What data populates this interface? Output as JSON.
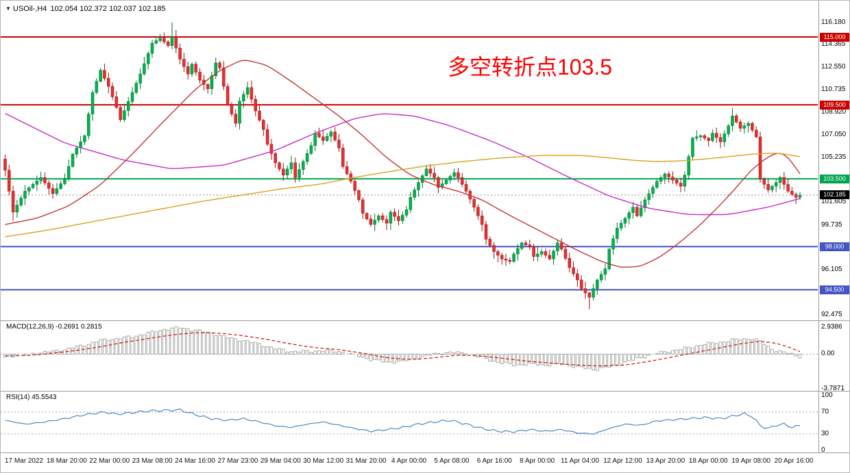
{
  "header": {
    "symbol_period": "USOil-,H4",
    "ohlc_values": "102.054 102.372 102.037 102.185"
  },
  "annotation": {
    "text": "多空转折点103.5",
    "color": "#ff0000"
  },
  "colors": {
    "up_candle": "#00b44c",
    "up_border": "#00712f",
    "down_candle": "#e53030",
    "down_border": "#9c0f0f",
    "resistance_line": "#cc0000",
    "pivot_line": "#00a651",
    "support_line": "#4455c4",
    "current_price_line": "#888888",
    "ma_magenta": "#c32cc3",
    "ma_red": "#c43434",
    "ma_orange": "#d9a21e",
    "macd_bar": "#a8a8a8",
    "macd_signal": "#cc1111",
    "rsi_line": "#3a7fb8",
    "separator": "#9a9a9a",
    "axis_text": "#000000"
  },
  "chart_data": {
    "type": "candlestick",
    "title": "USOil-,H4",
    "timeframe": "H4",
    "ohlc_display": {
      "open": "102.054",
      "high": "102.372",
      "low": "102.037",
      "close": "102.185"
    },
    "price_range": {
      "min": 92.3,
      "max": 117.5
    },
    "current_price": 102.185,
    "hlines": [
      {
        "price": 115.0,
        "type": "resistance"
      },
      {
        "price": 109.5,
        "type": "resistance"
      },
      {
        "price": 103.5,
        "type": "pivot"
      },
      {
        "price": 98.0,
        "type": "support"
      },
      {
        "price": 94.5,
        "type": "support"
      }
    ],
    "price_axis": {
      "labels": [
        {
          "price": 116.18,
          "label": "116.180"
        },
        {
          "price": 114.365,
          "label": "114.365"
        },
        {
          "price": 112.55,
          "label": "112.550"
        },
        {
          "price": 110.735,
          "label": "110.735"
        },
        {
          "price": 108.92,
          "label": "108.920"
        },
        {
          "price": 107.05,
          "label": "107.050"
        },
        {
          "price": 105.235,
          "label": "105.235"
        },
        {
          "price": 101.605,
          "label": "101.605"
        },
        {
          "price": 99.735,
          "label": "99.735"
        },
        {
          "price": 96.105,
          "label": "96.105"
        },
        {
          "price": 92.475,
          "label": "92.475"
        }
      ],
      "badges": [
        {
          "price": 115.0,
          "label": "115.000",
          "type": "resistance"
        },
        {
          "price": 109.5,
          "label": "109.500",
          "type": "resistance"
        },
        {
          "price": 103.5,
          "label": "103.500",
          "type": "pivot"
        },
        {
          "price": 102.185,
          "label": "102.185",
          "type": "current"
        },
        {
          "price": 98.0,
          "label": "98.000",
          "type": "support"
        },
        {
          "price": 94.5,
          "label": "94.500",
          "type": "support"
        }
      ]
    },
    "closes": [
      104.2,
      102.5,
      100.8,
      101.37,
      101.93,
      102.5,
      102.78,
      103.05,
      103.33,
      103.6,
      103.17,
      102.73,
      102.3,
      102.7,
      103.1,
      103.5,
      104.5,
      105.5,
      106.0,
      106.5,
      107.0,
      108.75,
      110.5,
      111.4,
      112.3,
      111.65,
      111.0,
      110.15,
      109.3,
      108.3,
      109.03,
      109.77,
      110.5,
      111.25,
      112.0,
      112.83,
      113.67,
      114.5,
      114.7,
      114.9,
      114.6,
      114.3,
      115.0,
      114.1,
      113.2,
      112.6,
      112.0,
      112.8,
      112.15,
      111.5,
      111.15,
      110.8,
      111.85,
      112.9,
      112.5,
      111.0,
      109.5,
      108.75,
      108.0,
      109.8,
      110.35,
      110.9,
      109.95,
      109.0,
      108.25,
      107.5,
      106.3,
      105.55,
      104.8,
      104.3,
      103.8,
      104.3,
      104.8,
      103.6,
      104.25,
      104.9,
      105.55,
      106.2,
      107.2,
      106.9,
      106.6,
      106.95,
      107.3,
      106.65,
      106.0,
      104.5,
      103.9,
      103.3,
      102.55,
      101.8,
      100.7,
      100.25,
      99.8,
      100.15,
      100.5,
      100.2,
      99.9,
      100.8,
      100.45,
      100.1,
      100.55,
      101.0,
      102.0,
      102.6,
      103.2,
      103.75,
      104.3,
      103.95,
      103.6,
      102.8,
      103.1,
      103.4,
      103.7,
      104.0,
      103.6,
      103.05,
      102.5,
      101.85,
      101.2,
      100.5,
      99.8,
      98.6,
      98.1,
      97.6,
      97.3,
      97.0,
      96.9,
      96.8,
      97.4,
      97.85,
      98.3,
      98.15,
      98.0,
      97.2,
      97.4,
      97.6,
      97.3,
      97.0,
      97.65,
      98.3,
      97.8,
      97.05,
      96.3,
      95.8,
      95.3,
      94.6,
      94.25,
      93.9,
      94.6,
      95.3,
      95.75,
      96.2,
      97.8,
      98.65,
      99.5,
      99.9,
      100.3,
      100.75,
      101.2,
      100.5,
      101.15,
      101.8,
      102.3,
      102.8,
      103.3,
      103.6,
      103.9,
      103.65,
      103.4,
      103.15,
      102.9,
      103.8,
      105.3,
      106.8,
      106.9,
      107.0,
      106.8,
      106.6,
      107.2,
      106.85,
      106.5,
      107.15,
      107.8,
      108.6,
      108.1,
      107.6,
      107.8,
      108.0,
      107.45,
      106.9,
      103.5,
      103.05,
      102.6,
      102.9,
      103.2,
      103.6,
      103.05,
      102.5,
      102.25,
      102.0,
      102.185
    ],
    "wick_hints": [
      {
        "index": 42,
        "high": 116.18
      },
      {
        "index": 147,
        "low": 92.93
      },
      {
        "index": 183,
        "high": 109.25
      },
      {
        "index": 2,
        "low": 100.1
      }
    ],
    "overlays": [
      {
        "name": "ma-magenta",
        "color_key": "ma_magenta",
        "points": [
          [
            0,
            108.8
          ],
          [
            15,
            106.4
          ],
          [
            30,
            105.0
          ],
          [
            42,
            104.3
          ],
          [
            55,
            104.6
          ],
          [
            68,
            105.8
          ],
          [
            78,
            107.2
          ],
          [
            88,
            108.4
          ],
          [
            95,
            108.8
          ],
          [
            103,
            108.6
          ],
          [
            112,
            107.8
          ],
          [
            122,
            106.6
          ],
          [
            132,
            105.2
          ],
          [
            142,
            103.6
          ],
          [
            152,
            102.1
          ],
          [
            162,
            101.1
          ],
          [
            172,
            100.6
          ],
          [
            182,
            100.6
          ],
          [
            192,
            101.2
          ],
          [
            200,
            101.9
          ]
        ]
      },
      {
        "name": "ma-red",
        "color_key": "ma_red",
        "points": [
          [
            0,
            99.8
          ],
          [
            8,
            100.3
          ],
          [
            16,
            101.3
          ],
          [
            24,
            103.0
          ],
          [
            32,
            105.5
          ],
          [
            40,
            108.2
          ],
          [
            48,
            110.8
          ],
          [
            54,
            112.3
          ],
          [
            60,
            113.2
          ],
          [
            66,
            112.7
          ],
          [
            72,
            111.4
          ],
          [
            78,
            110.0
          ],
          [
            84,
            108.6
          ],
          [
            90,
            107.0
          ],
          [
            96,
            105.2
          ],
          [
            102,
            103.8
          ],
          [
            108,
            103.0
          ],
          [
            114,
            102.5
          ],
          [
            120,
            101.8
          ],
          [
            126,
            100.7
          ],
          [
            132,
            99.7
          ],
          [
            138,
            98.7
          ],
          [
            144,
            97.7
          ],
          [
            150,
            96.8
          ],
          [
            155,
            96.3
          ],
          [
            160,
            96.4
          ],
          [
            165,
            97.2
          ],
          [
            170,
            98.4
          ],
          [
            175,
            99.8
          ],
          [
            180,
            101.4
          ],
          [
            184,
            102.8
          ],
          [
            188,
            104.3
          ],
          [
            192,
            105.3
          ],
          [
            195,
            105.7
          ],
          [
            197,
            105.3
          ],
          [
            199,
            104.4
          ],
          [
            200,
            103.9
          ]
        ]
      },
      {
        "name": "ma-orange",
        "color_key": "ma_orange",
        "points": [
          [
            0,
            98.8
          ],
          [
            10,
            99.3
          ],
          [
            20,
            99.9
          ],
          [
            30,
            100.5
          ],
          [
            40,
            101.1
          ],
          [
            50,
            101.7
          ],
          [
            60,
            102.2
          ],
          [
            70,
            102.7
          ],
          [
            80,
            103.1
          ],
          [
            86,
            103.5
          ],
          [
            95,
            104.0
          ],
          [
            105,
            104.5
          ],
          [
            115,
            104.9
          ],
          [
            125,
            105.2
          ],
          [
            135,
            105.4
          ],
          [
            145,
            105.4
          ],
          [
            152,
            105.2
          ],
          [
            158,
            105.0
          ],
          [
            164,
            104.9
          ],
          [
            170,
            104.95
          ],
          [
            176,
            105.1
          ],
          [
            182,
            105.3
          ],
          [
            188,
            105.5
          ],
          [
            194,
            105.6
          ],
          [
            200,
            105.3
          ]
        ]
      }
    ],
    "macd": {
      "label": "MACD(12,26,9) -0.2691 0.2815",
      "values": {
        "macd": -0.2691,
        "signal": 0.2815
      },
      "range": {
        "max": 2.9386,
        "min": -3.7871
      },
      "axis_labels": [
        {
          "value": 2.9386,
          "label": "2.9386"
        },
        {
          "value": 0,
          "label": "0.00"
        },
        {
          "value": -3.7871,
          "label": "-3.7871"
        }
      ],
      "histogram": [
        [
          0,
          -0.3
        ],
        [
          4,
          -0.1
        ],
        [
          8,
          0.1
        ],
        [
          12,
          0.3
        ],
        [
          16,
          0.6
        ],
        [
          20,
          1.0
        ],
        [
          24,
          1.5
        ],
        [
          28,
          1.7
        ],
        [
          32,
          1.9
        ],
        [
          36,
          2.3
        ],
        [
          40,
          2.7
        ],
        [
          44,
          2.9
        ],
        [
          48,
          2.6
        ],
        [
          52,
          2.3
        ],
        [
          56,
          1.8
        ],
        [
          60,
          1.5
        ],
        [
          64,
          1.1
        ],
        [
          68,
          0.6
        ],
        [
          72,
          0.3
        ],
        [
          76,
          0.3
        ],
        [
          80,
          0.4
        ],
        [
          84,
          0.3
        ],
        [
          88,
          -0.1
        ],
        [
          92,
          -0.6
        ],
        [
          96,
          -0.9
        ],
        [
          100,
          -0.8
        ],
        [
          104,
          -0.4
        ],
        [
          108,
          0.0
        ],
        [
          112,
          0.2
        ],
        [
          116,
          0.1
        ],
        [
          120,
          -0.4
        ],
        [
          124,
          -0.9
        ],
        [
          128,
          -1.2
        ],
        [
          132,
          -1.1
        ],
        [
          136,
          -1.2
        ],
        [
          140,
          -1.1
        ],
        [
          144,
          -1.4
        ],
        [
          148,
          -1.7
        ],
        [
          152,
          -1.4
        ],
        [
          156,
          -0.9
        ],
        [
          160,
          -0.4
        ],
        [
          164,
          0.1
        ],
        [
          168,
          0.4
        ],
        [
          172,
          0.7
        ],
        [
          176,
          1.1
        ],
        [
          180,
          1.3
        ],
        [
          184,
          1.6
        ],
        [
          188,
          1.7
        ],
        [
          190,
          1.4
        ],
        [
          192,
          0.8
        ],
        [
          194,
          0.4
        ],
        [
          196,
          0.2
        ],
        [
          198,
          0.0
        ],
        [
          200,
          -0.2691
        ]
      ],
      "signal": [
        [
          0,
          -0.2
        ],
        [
          6,
          -0.15
        ],
        [
          12,
          0.1
        ],
        [
          18,
          0.4
        ],
        [
          24,
          0.8
        ],
        [
          30,
          1.3
        ],
        [
          36,
          1.7
        ],
        [
          42,
          2.1
        ],
        [
          48,
          2.35
        ],
        [
          54,
          2.3
        ],
        [
          60,
          2.0
        ],
        [
          66,
          1.6
        ],
        [
          72,
          1.1
        ],
        [
          78,
          0.7
        ],
        [
          84,
          0.5
        ],
        [
          90,
          0.1
        ],
        [
          96,
          -0.4
        ],
        [
          102,
          -0.6
        ],
        [
          108,
          -0.4
        ],
        [
          114,
          -0.1
        ],
        [
          120,
          -0.2
        ],
        [
          126,
          -0.5
        ],
        [
          132,
          -0.8
        ],
        [
          138,
          -1.0
        ],
        [
          144,
          -1.2
        ],
        [
          150,
          -1.3
        ],
        [
          156,
          -1.2
        ],
        [
          162,
          -0.8
        ],
        [
          168,
          -0.3
        ],
        [
          174,
          0.2
        ],
        [
          180,
          0.7
        ],
        [
          186,
          1.2
        ],
        [
          190,
          1.4
        ],
        [
          194,
          1.2
        ],
        [
          197,
          0.8
        ],
        [
          200,
          0.2815
        ]
      ]
    },
    "rsi": {
      "label": "RSI(14) 45.5543",
      "value": 45.5543,
      "levels": [
        70,
        30
      ],
      "axis_labels": [
        {
          "value": 100,
          "label": "100"
        },
        {
          "value": 70,
          "label": "70"
        },
        {
          "value": 30,
          "label": "30"
        },
        {
          "value": 0,
          "label": "0"
        }
      ],
      "points": [
        [
          0,
          55
        ],
        [
          5,
          48
        ],
        [
          10,
          52
        ],
        [
          15,
          58
        ],
        [
          20,
          65
        ],
        [
          25,
          70
        ],
        [
          28,
          66
        ],
        [
          32,
          69
        ],
        [
          36,
          72
        ],
        [
          40,
          73
        ],
        [
          44,
          74
        ],
        [
          48,
          65
        ],
        [
          52,
          58
        ],
        [
          56,
          55
        ],
        [
          60,
          58
        ],
        [
          64,
          52
        ],
        [
          68,
          45
        ],
        [
          72,
          42
        ],
        [
          76,
          48
        ],
        [
          80,
          52
        ],
        [
          84,
          46
        ],
        [
          88,
          40
        ],
        [
          92,
          35
        ],
        [
          96,
          38
        ],
        [
          100,
          42
        ],
        [
          104,
          48
        ],
        [
          108,
          52
        ],
        [
          112,
          55
        ],
        [
          116,
          48
        ],
        [
          120,
          40
        ],
        [
          124,
          35
        ],
        [
          128,
          34
        ],
        [
          132,
          38
        ],
        [
          136,
          35
        ],
        [
          140,
          38
        ],
        [
          144,
          32
        ],
        [
          148,
          30
        ],
        [
          152,
          40
        ],
        [
          156,
          48
        ],
        [
          160,
          46
        ],
        [
          164,
          54
        ],
        [
          168,
          56
        ],
        [
          172,
          58
        ],
        [
          176,
          60
        ],
        [
          180,
          58
        ],
        [
          184,
          64
        ],
        [
          186,
          67
        ],
        [
          188,
          62
        ],
        [
          190,
          45
        ],
        [
          192,
          40
        ],
        [
          194,
          46
        ],
        [
          196,
          48
        ],
        [
          198,
          42
        ],
        [
          200,
          45.55
        ]
      ]
    },
    "x_labels": [
      "17 Mar 2022",
      "18 Mar 20:00",
      "22 Mar 00:00",
      "23 Mar 08:00",
      "24 Mar 16:00",
      "27 Mar 23:00",
      "29 Mar 04:00",
      "30 Mar 12:00",
      "31 Mar 20:00",
      "4 Apr 00:00",
      "5 Apr 08:00",
      "6 Apr 16:00",
      "8 Apr 00:00",
      "11 Apr 04:00",
      "12 Apr 12:00",
      "13 Apr 20:00",
      "18 Apr 00:00",
      "19 Apr 08:00",
      "20 Apr 16:00"
    ]
  }
}
